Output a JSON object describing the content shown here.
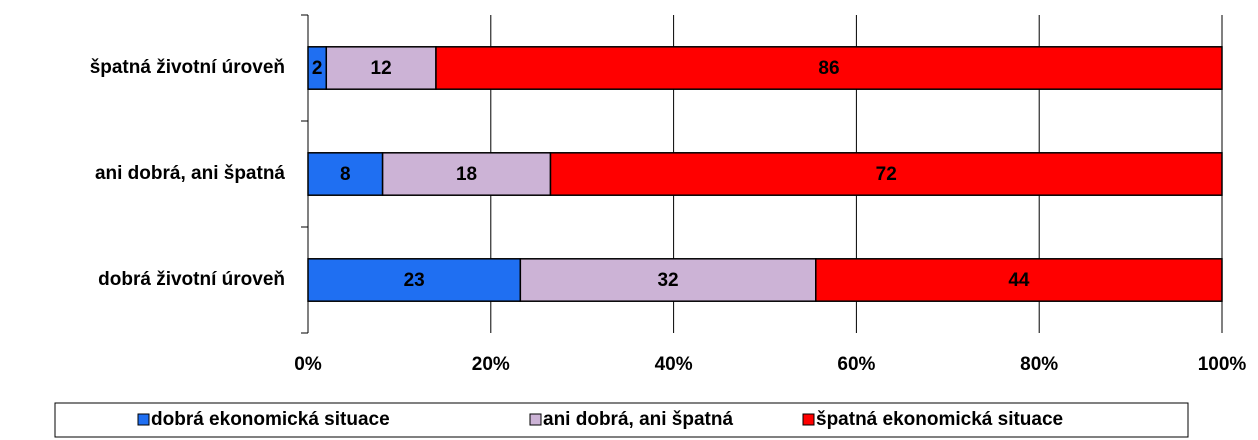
{
  "chart_data": {
    "type": "bar",
    "orientation": "horizontal",
    "stacking": "percent",
    "categories": [
      "špatná životní úroveň",
      "ani dobrá, ani špatná",
      "dobrá životní úroveň"
    ],
    "series": [
      {
        "name": "dobrá ekonomická situace",
        "color": "#1f6ff2",
        "values": [
          2,
          8,
          23
        ]
      },
      {
        "name": "ani dobrá, ani špatná",
        "color": "#ccb3d6",
        "values": [
          12,
          18,
          32
        ]
      },
      {
        "name": "špatná ekonomická situace",
        "color": "#ff0000",
        "values": [
          86,
          72,
          44
        ]
      }
    ],
    "xlim": [
      0,
      100
    ],
    "xticks": [
      {
        "value": 0,
        "label": "0%"
      },
      {
        "value": 20,
        "label": "20%"
      },
      {
        "value": 40,
        "label": "40%"
      },
      {
        "value": 60,
        "label": "60%"
      },
      {
        "value": 80,
        "label": "80%"
      },
      {
        "value": 100,
        "label": "100%"
      }
    ],
    "grid": true,
    "legend": "bottom"
  }
}
